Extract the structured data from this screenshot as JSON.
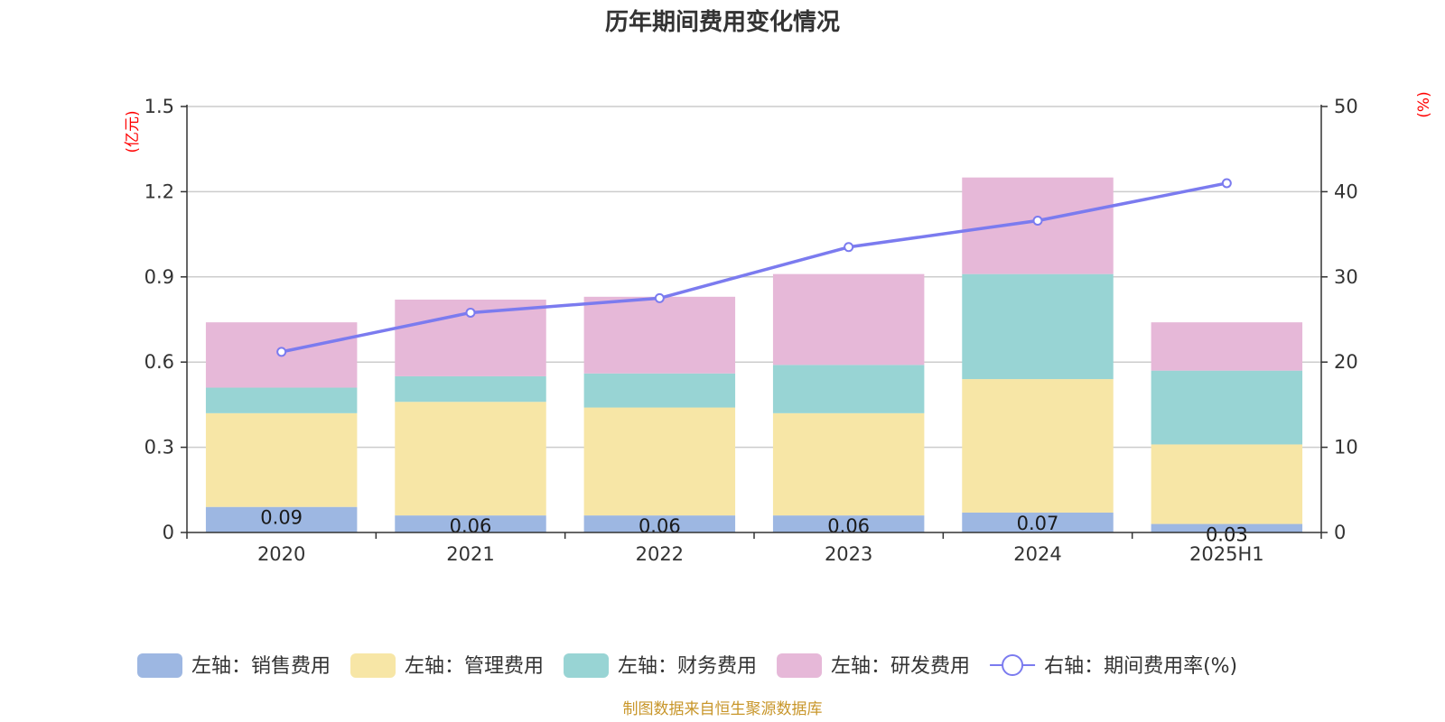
{
  "chart_data": {
    "type": "bar",
    "stacked": true,
    "title": "历年期间费用变化情况",
    "categories": [
      "2020",
      "2021",
      "2022",
      "2023",
      "2024",
      "2025H1"
    ],
    "left_axis": {
      "unit": "(亿元)",
      "ylim": [
        0,
        1.5
      ],
      "ticks": [
        "0",
        "0.3",
        "0.6",
        "0.9",
        "1.2",
        "1.5"
      ]
    },
    "right_axis": {
      "unit": "(%)",
      "ylim": [
        0,
        50
      ],
      "ticks": [
        "0",
        "10",
        "20",
        "30",
        "40",
        "50"
      ]
    },
    "series": [
      {
        "name": "左轴：销售费用",
        "color": "#9db7e2",
        "axis": "left",
        "values": [
          0.09,
          0.06,
          0.06,
          0.06,
          0.07,
          0.03
        ],
        "labels": [
          "0.09",
          "0.06",
          "0.06",
          "0.06",
          "0.07",
          "0.03"
        ]
      },
      {
        "name": "左轴：管理费用",
        "color": "#f7e6a6",
        "axis": "left",
        "values": [
          0.33,
          0.4,
          0.38,
          0.36,
          0.47,
          0.28
        ]
      },
      {
        "name": "左轴：财务费用",
        "color": "#98d4d4",
        "axis": "left",
        "values": [
          0.09,
          0.09,
          0.12,
          0.17,
          0.37,
          0.26
        ]
      },
      {
        "name": "左轴：研发费用",
        "color": "#e6b8d8",
        "axis": "left",
        "values": [
          0.23,
          0.27,
          0.27,
          0.32,
          0.34,
          0.17
        ]
      },
      {
        "name": "右轴：期间费用率(%)",
        "color": "#7b7bef",
        "axis": "right",
        "type": "line",
        "values": [
          21.2,
          25.8,
          27.5,
          33.5,
          36.6,
          41.0
        ]
      }
    ],
    "grid": true,
    "legend": "bottom",
    "source": "制图数据来自恒生聚源数据库"
  }
}
